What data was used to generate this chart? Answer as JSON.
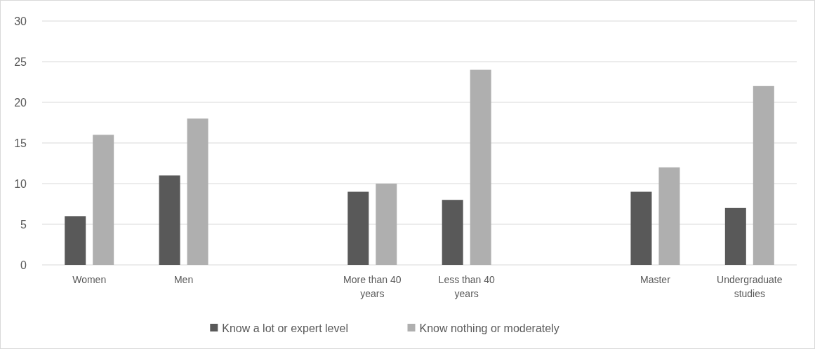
{
  "chart_data": {
    "type": "bar",
    "categories": [
      "Women",
      "Men",
      null,
      "More than 40 years",
      "Less than 40 years",
      null,
      "Master",
      "Undergraduate studies"
    ],
    "series": [
      {
        "name": "Know a lot or expert level",
        "color": "#595959",
        "values": [
          6,
          11,
          null,
          9,
          8,
          null,
          9,
          7
        ]
      },
      {
        "name": "Know nothing or moderately",
        "color": "#afafaf",
        "values": [
          16,
          18,
          null,
          10,
          24,
          null,
          12,
          22
        ]
      }
    ],
    "ylim": [
      0,
      30
    ],
    "yticks": [
      0,
      5,
      10,
      15,
      20,
      25,
      30
    ],
    "grid": "y",
    "legend": "bottom"
  }
}
